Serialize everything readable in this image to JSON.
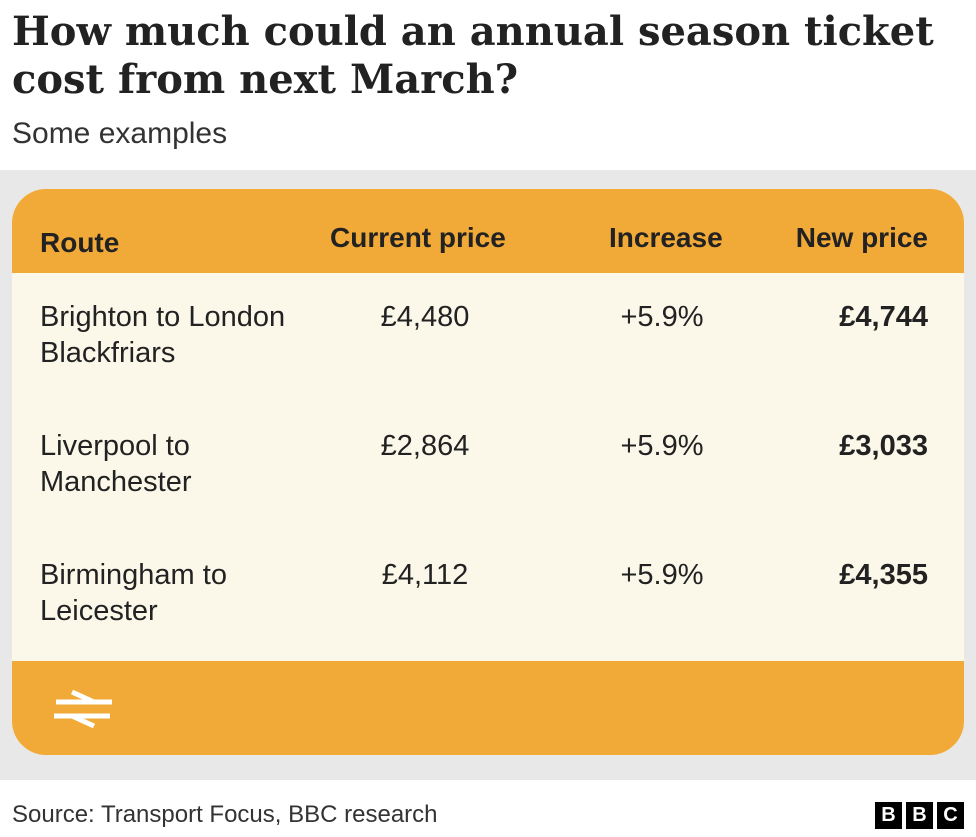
{
  "title": "How much could an annual season ticket cost from next March?",
  "subtitle": "Some examples",
  "table": {
    "columns": {
      "route": "Route",
      "current": "Current price",
      "increase": "Increase",
      "new": "New price"
    },
    "rows": [
      {
        "route": "Brighton to London Blackfriars",
        "current": "£4,480",
        "increase": "+5.9%",
        "new": "£4,744"
      },
      {
        "route": "Liverpool to Manchester",
        "current": "£2,864",
        "increase": "+5.9%",
        "new": "£3,033"
      },
      {
        "route": "Birmingham to Leicester",
        "current": "£4,112",
        "increase": "+5.9%",
        "new": "£4,355"
      }
    ],
    "footer_icon": "national-rail-icon"
  },
  "footer": {
    "source": "Source: Transport Focus, BBC research",
    "logo": [
      "B",
      "B",
      "C"
    ]
  },
  "colors": {
    "accent": "#f1aa37",
    "card_background": "#fbf8ea",
    "panel_background": "#e8e8e8"
  }
}
